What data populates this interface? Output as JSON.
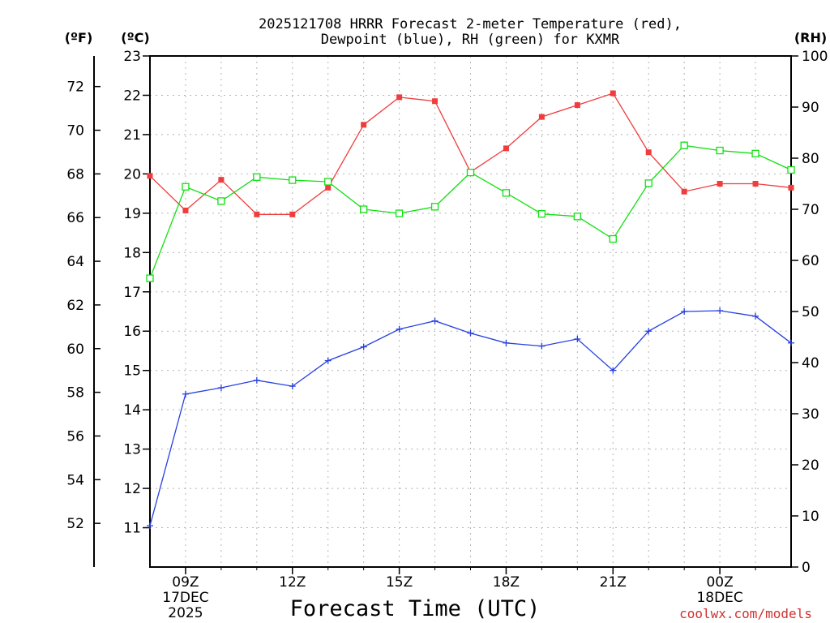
{
  "chart_data": {
    "type": "line",
    "title_line1": "2025121708 HRRR Forecast 2-meter Temperature (red),",
    "title_line2": "Dewpoint (blue), RH (green) for KXMR",
    "xlabel": "Forecast Time (UTC)",
    "credit": "coolwx.com/models",
    "left_outer_unit": "(ºF)",
    "left_inner_unit": "(ºC)",
    "right_unit": "(RH)",
    "x_hours": [
      8,
      9,
      10,
      11,
      12,
      13,
      14,
      15,
      16,
      17,
      18,
      19,
      20,
      21,
      22,
      23,
      24,
      25,
      26
    ],
    "xlim": [
      8,
      26
    ],
    "celsius_lim": [
      10,
      23
    ],
    "rh_lim": [
      0,
      100
    ],
    "x_ticks": [
      {
        "hour": 9,
        "label": "09Z",
        "sub1": "17DEC",
        "sub2": "2025"
      },
      {
        "hour": 12,
        "label": "12Z",
        "sub1": "",
        "sub2": ""
      },
      {
        "hour": 15,
        "label": "15Z",
        "sub1": "",
        "sub2": ""
      },
      {
        "hour": 18,
        "label": "18Z",
        "sub1": "",
        "sub2": ""
      },
      {
        "hour": 21,
        "label": "21Z",
        "sub1": "",
        "sub2": ""
      },
      {
        "hour": 24,
        "label": "00Z",
        "sub1": "18DEC",
        "sub2": ""
      }
    ],
    "celsius_ticks": [
      "11",
      "12",
      "13",
      "14",
      "15",
      "16",
      "17",
      "18",
      "19",
      "20",
      "21",
      "22",
      "23"
    ],
    "fahrenheit_ticks": [
      "52",
      "54",
      "56",
      "58",
      "60",
      "62",
      "64",
      "66",
      "68",
      "70",
      "72"
    ],
    "rh_ticks": [
      "0",
      "10",
      "20",
      "30",
      "40",
      "50",
      "60",
      "70",
      "80",
      "90",
      "100"
    ],
    "grid": true,
    "series": [
      {
        "name": "Temperature (C)",
        "axis": "celsius",
        "color": "#f03c3c",
        "marker": "filled-square",
        "values": [
          19.95,
          19.07,
          19.85,
          18.97,
          18.97,
          19.65,
          21.25,
          21.95,
          21.85,
          20.05,
          20.65,
          21.45,
          21.75,
          22.05,
          20.55,
          19.55,
          19.75,
          19.75,
          19.65
        ]
      },
      {
        "name": "Dewpoint (C)",
        "axis": "celsius",
        "color": "#2840e0",
        "marker": "plus",
        "values": [
          11.05,
          14.4,
          14.56,
          14.75,
          14.6,
          15.25,
          15.6,
          16.05,
          16.26,
          15.95,
          15.7,
          15.62,
          15.8,
          15.0,
          16.0,
          16.5,
          16.52,
          16.38,
          15.7
        ]
      },
      {
        "name": "RH (%)",
        "axis": "rh",
        "color": "#10e010",
        "marker": "open-square",
        "values": [
          56.5,
          74.4,
          71.6,
          76.3,
          75.7,
          75.4,
          70.0,
          69.2,
          70.5,
          77.2,
          73.2,
          69.1,
          68.6,
          64.2,
          75.1,
          82.5,
          81.5,
          80.9,
          77.7
        ]
      }
    ]
  }
}
